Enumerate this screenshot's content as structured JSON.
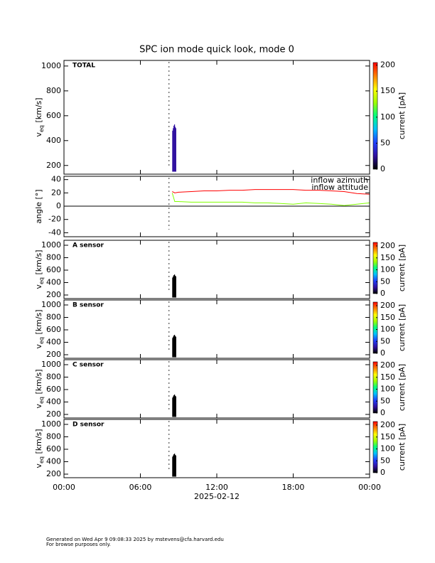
{
  "title": "SPC ion mode quick look, mode 0",
  "footer": [
    "Generated on Wed Apr  9 09:08:33 2025 by mstevens@cfa.harvard.edu",
    "For browse purposes only."
  ],
  "xaxis": {
    "xlim": [
      0,
      24
    ],
    "xticks": [
      {
        "value": 0,
        "label": "00:00"
      },
      {
        "value": 6,
        "label": "06:00"
      },
      {
        "value": 12,
        "label": "12:00"
      },
      {
        "value": 18,
        "label": "18:00"
      },
      {
        "value": 24,
        "label": "00:00"
      }
    ],
    "xlabel": "2025-02-12"
  },
  "colorscale": [
    "#000000",
    "#3010a0",
    "#2040ff",
    "#00c0ff",
    "#00ff80",
    "#a0ff00",
    "#ffff00",
    "#ff8000",
    "#ff0000"
  ],
  "chart_data": [
    {
      "type": "spectrogram",
      "label": "TOTAL",
      "ylabel": {
        "main": "v",
        "sub": "eq",
        "unit": " [km/s]"
      },
      "ylim": [
        130,
        1045
      ],
      "yticks": [
        200,
        400,
        600,
        800,
        1000
      ],
      "x": [
        8.5,
        8.55,
        8.6,
        8.65,
        8.7,
        8.75
      ],
      "low": [
        150,
        150,
        150,
        150,
        150,
        150
      ],
      "high": [
        480,
        500,
        520,
        530,
        510,
        500
      ],
      "values": [
        18,
        20,
        22,
        22,
        20,
        18
      ],
      "colorbar": {
        "label": "current [pA]",
        "lim": [
          0,
          205
        ],
        "ticks": [
          0,
          50,
          100,
          150,
          200
        ]
      }
    },
    {
      "type": "line",
      "ylabel": "angle [°]",
      "ylim": [
        -46,
        45
      ],
      "yticks": [
        -40,
        -20,
        0,
        20,
        40
      ],
      "x": [
        8.5,
        8.7,
        9,
        10,
        11,
        12,
        13,
        14,
        15,
        16,
        17,
        18,
        19,
        20,
        21,
        22,
        23,
        24
      ],
      "series": [
        {
          "name": "inflow azimuth",
          "color": "#ff0000",
          "values": [
            22,
            20,
            21,
            22,
            23,
            23,
            24,
            24,
            25,
            25,
            25,
            25,
            24,
            24,
            23,
            22,
            19,
            18
          ]
        },
        {
          "name": "inflow attitude",
          "color": "#80ff00",
          "values": [
            20,
            7,
            7,
            6,
            6,
            6,
            6,
            6,
            5,
            5,
            4,
            3,
            5,
            4,
            3,
            1,
            3,
            5
          ]
        }
      ]
    },
    {
      "type": "spectrogram",
      "label": "A sensor",
      "ylabel": {
        "main": "v",
        "sub": "eq",
        "unit": " [km/s]"
      },
      "ylim": [
        143,
        1080
      ],
      "yticks": [
        200,
        400,
        600,
        800,
        1000
      ],
      "x": [
        8.5,
        8.55,
        8.6,
        8.65,
        8.7,
        8.75
      ],
      "low": [
        160,
        160,
        160,
        160,
        160,
        160
      ],
      "high": [
        480,
        500,
        520,
        530,
        510,
        500
      ],
      "values": [
        2,
        2,
        3,
        3,
        2,
        2
      ],
      "colorbar": {
        "label": "current [pA]",
        "lim": [
          0,
          215
        ],
        "ticks": [
          0,
          50,
          100,
          150,
          200
        ]
      }
    },
    {
      "type": "spectrogram",
      "label": "B sensor",
      "ylabel": {
        "main": "v",
        "sub": "eq",
        "unit": " [km/s]"
      },
      "ylim": [
        143,
        1080
      ],
      "yticks": [
        200,
        400,
        600,
        800,
        1000
      ],
      "x": [
        8.5,
        8.55,
        8.6,
        8.65,
        8.7,
        8.75
      ],
      "low": [
        160,
        160,
        160,
        160,
        160,
        160
      ],
      "high": [
        470,
        490,
        510,
        520,
        500,
        490
      ],
      "values": [
        2,
        2,
        3,
        3,
        2,
        2
      ],
      "colorbar": {
        "label": "current [pA]",
        "lim": [
          0,
          215
        ],
        "ticks": [
          0,
          50,
          100,
          150,
          200
        ]
      }
    },
    {
      "type": "spectrogram",
      "label": "C sensor",
      "ylabel": {
        "main": "v",
        "sub": "eq",
        "unit": " [km/s]"
      },
      "ylim": [
        143,
        1080
      ],
      "yticks": [
        200,
        400,
        600,
        800,
        1000
      ],
      "x": [
        8.5,
        8.55,
        8.6,
        8.65,
        8.7,
        8.75
      ],
      "low": [
        160,
        160,
        160,
        160,
        160,
        160
      ],
      "high": [
        470,
        490,
        510,
        520,
        500,
        490
      ],
      "values": [
        2,
        2,
        3,
        3,
        2,
        2
      ],
      "colorbar": {
        "label": "current [pA]",
        "lim": [
          0,
          215
        ],
        "ticks": [
          0,
          50,
          100,
          150,
          200
        ]
      }
    },
    {
      "type": "spectrogram",
      "label": "D sensor",
      "ylabel": {
        "main": "v",
        "sub": "eq",
        "unit": " [km/s]"
      },
      "ylim": [
        143,
        1080
      ],
      "yticks": [
        200,
        400,
        600,
        800,
        1000
      ],
      "x": [
        8.5,
        8.55,
        8.6,
        8.65,
        8.7,
        8.75
      ],
      "low": [
        160,
        160,
        160,
        160,
        160,
        160
      ],
      "high": [
        480,
        500,
        520,
        530,
        510,
        500
      ],
      "values": [
        6,
        8,
        10,
        8,
        6,
        4
      ],
      "colorbar": {
        "label": "current [pA]",
        "lim": [
          0,
          215
        ],
        "ticks": [
          0,
          50,
          100,
          150,
          200
        ]
      }
    }
  ]
}
